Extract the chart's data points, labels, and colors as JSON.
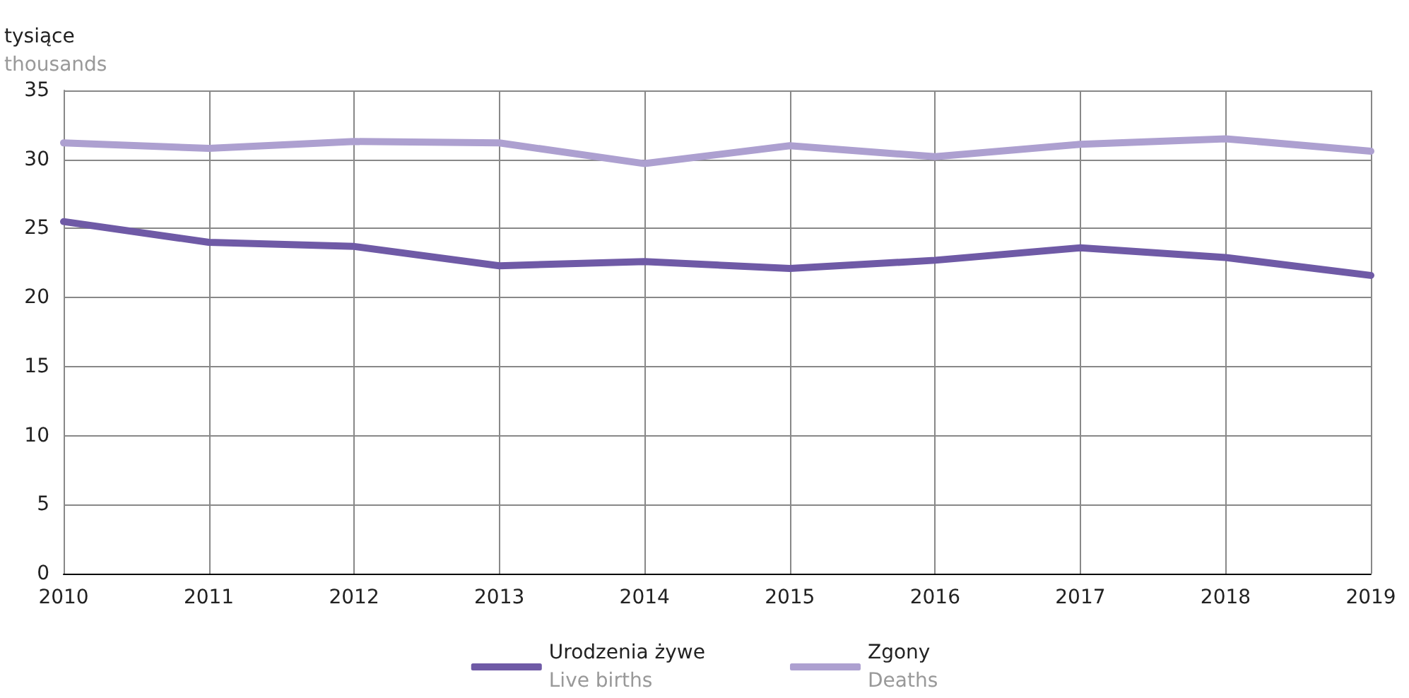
{
  "chart_data": {
    "type": "line",
    "ylabel": "tysiące\nthousands",
    "categories": [
      "2010",
      "2011",
      "2012",
      "2013",
      "2014",
      "2015",
      "2016",
      "2017",
      "2018",
      "2019"
    ],
    "series": [
      {
        "name": "Urodzenia żywe\nLive births",
        "color": "#6f5aa6",
        "values": [
          25.5,
          24.0,
          23.7,
          22.3,
          22.6,
          22.1,
          22.7,
          23.6,
          22.9,
          21.6
        ]
      },
      {
        "name": "Zgony\nDeaths",
        "color": "#ada0d0",
        "values": [
          31.2,
          30.8,
          31.3,
          31.2,
          29.7,
          31.0,
          30.2,
          31.1,
          31.5,
          30.6
        ]
      }
    ],
    "ylim": [
      0,
      35
    ],
    "yticks": [
      0,
      5,
      10,
      15,
      20,
      25,
      30,
      35
    ],
    "grid": true,
    "legend": "bottom",
    "marker": "none",
    "line_style": "solid"
  }
}
